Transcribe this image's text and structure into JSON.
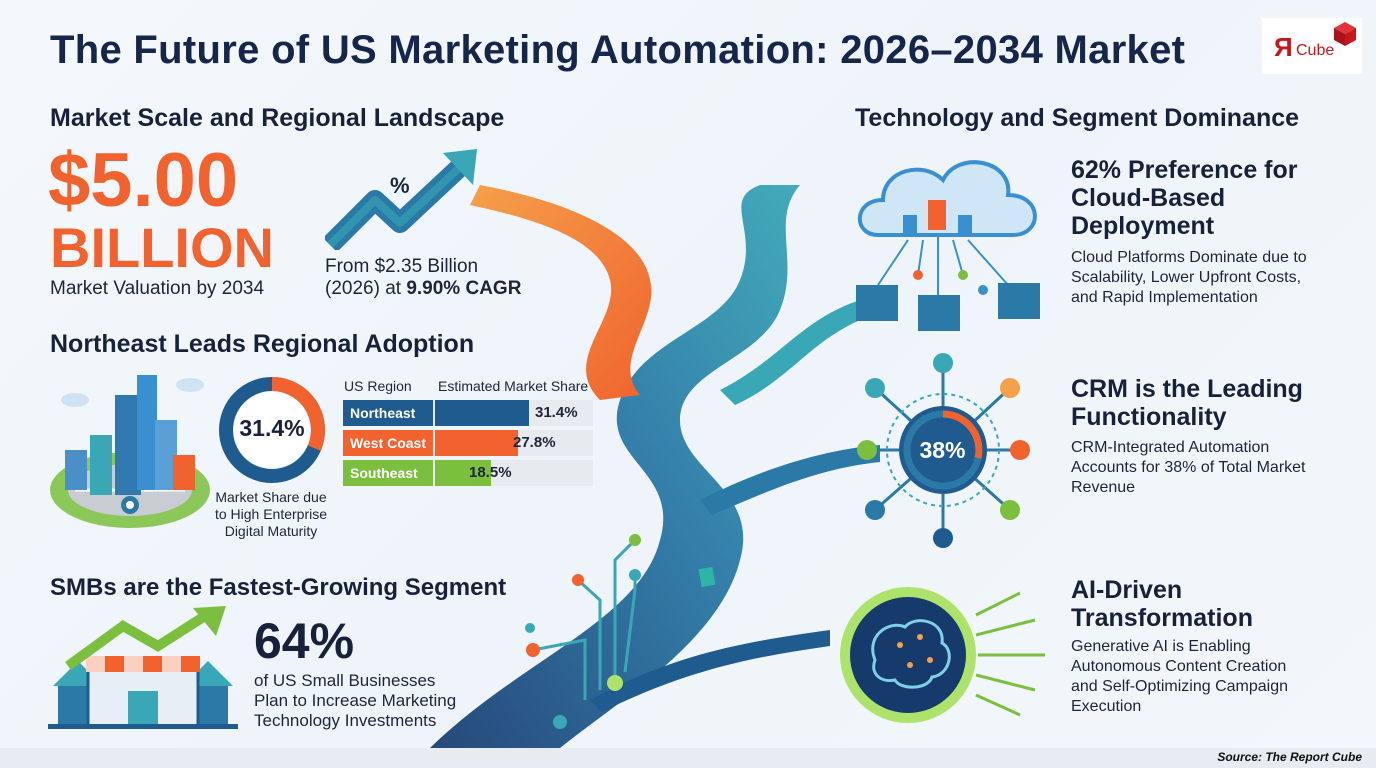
{
  "header": {
    "title": "The Future of US Marketing Automation: 2026–2034 Market",
    "logo_letter": "Я",
    "logo_word": "Cube"
  },
  "market_scale": {
    "heading": "Market Scale and Regional Landscape",
    "value": "$5.00",
    "unit": "BILLION",
    "caption": "Market Valuation by 2034",
    "arrow_symbol": "%",
    "growth_line1": "From $2.35 Billion",
    "growth_line2_prefix": "(2026) at ",
    "growth_line2_bold": "9.90% CAGR"
  },
  "regional": {
    "heading": "Northeast Leads Regional Adoption",
    "donut_value": "31.4%",
    "donut_fraction": 0.314,
    "donut_caption": [
      "Market Share due",
      "to High Enterprise",
      "Digital Maturity"
    ],
    "table_headers": [
      "US Region",
      "Estimated Market Share"
    ],
    "rows": [
      {
        "region": "Northeast",
        "share": "31.4%",
        "value": 31.4,
        "color": "#1f5b8f"
      },
      {
        "region": "West Coast",
        "share": "27.8%",
        "value": 27.8,
        "color": "#f2622f"
      },
      {
        "region": "Southeast",
        "share": "18.5%",
        "value": 18.5,
        "color": "#7cbf3f"
      }
    ]
  },
  "smb": {
    "heading": "SMBs are the Fastest-Growing Segment",
    "value": "64%",
    "caption": [
      "of US Small Businesses",
      "Plan to Increase Marketing",
      "Technology Investments"
    ]
  },
  "technology": {
    "heading": "Technology and Segment Dominance",
    "cloud": {
      "title": [
        "62% Preference for",
        "Cloud-Based",
        "Deployment"
      ],
      "desc": [
        "Cloud Platforms Dominate due to",
        "Scalability, Lower Upfront Costs,",
        "and Rapid Implementation"
      ]
    },
    "crm": {
      "badge": "38%",
      "title": [
        "CRM is the Leading",
        "Functionality"
      ],
      "desc": [
        "CRM-Integrated Automation",
        "Accounts for 38% of Total Market",
        "Revenue"
      ]
    },
    "ai": {
      "title": [
        "AI-Driven",
        "Transformation"
      ],
      "desc": [
        "Generative AI is Enabling",
        "Autonomous Content Creation",
        "and Self-Optimizing Campaign",
        "Execution"
      ]
    }
  },
  "footer": {
    "source": "Source: The Report Cube"
  },
  "colors": {
    "orange": "#f2622f",
    "navy": "#1f5b8f",
    "green": "#7cbf3f",
    "teal": "#2f9fb0"
  }
}
